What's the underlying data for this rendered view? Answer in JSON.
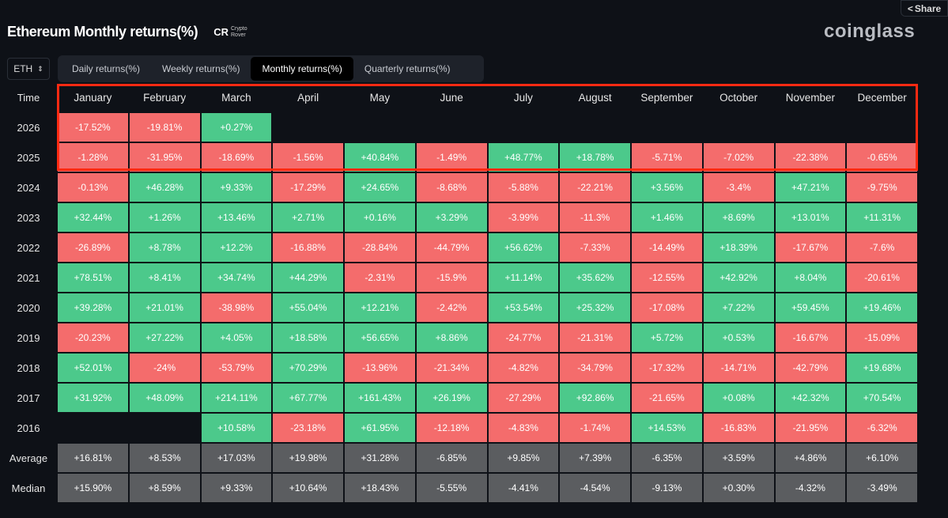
{
  "header": {
    "title": "Ethereum Monthly returns(%)",
    "logo_mark": "CR",
    "logo_text": "Crypto Rover",
    "brand": "coinglass",
    "share_label": "Share"
  },
  "asset_selector": {
    "value": "ETH"
  },
  "tabs": [
    {
      "label": "Daily returns(%)",
      "active": false
    },
    {
      "label": "Weekly returns(%)",
      "active": false
    },
    {
      "label": "Monthly returns(%)",
      "active": true
    },
    {
      "label": "Quarterly returns(%)",
      "active": false
    }
  ],
  "colors": {
    "positive": "#4cc98b",
    "negative": "#f46c6c",
    "summary": "#5b5d60",
    "highlight": "#ff2a12"
  },
  "table": {
    "time_label": "Time",
    "months": [
      "January",
      "February",
      "March",
      "April",
      "May",
      "June",
      "July",
      "August",
      "September",
      "October",
      "November",
      "December"
    ],
    "rows": [
      {
        "year": "2026",
        "values": [
          "-17.52%",
          "-19.81%",
          "+0.27%",
          null,
          null,
          null,
          null,
          null,
          null,
          null,
          null,
          null
        ]
      },
      {
        "year": "2025",
        "values": [
          "-1.28%",
          "-31.95%",
          "-18.69%",
          "-1.56%",
          "+40.84%",
          "-1.49%",
          "+48.77%",
          "+18.78%",
          "-5.71%",
          "-7.02%",
          "-22.38%",
          "-0.65%"
        ]
      },
      {
        "year": "2024",
        "values": [
          "-0.13%",
          "+46.28%",
          "+9.33%",
          "-17.29%",
          "+24.65%",
          "-8.68%",
          "-5.88%",
          "-22.21%",
          "+3.56%",
          "-3.4%",
          "+47.21%",
          "-9.75%"
        ]
      },
      {
        "year": "2023",
        "values": [
          "+32.44%",
          "+1.26%",
          "+13.46%",
          "+2.71%",
          "+0.16%",
          "+3.29%",
          "-3.99%",
          "-11.3%",
          "+1.46%",
          "+8.69%",
          "+13.01%",
          "+11.31%"
        ]
      },
      {
        "year": "2022",
        "values": [
          "-26.89%",
          "+8.78%",
          "+12.2%",
          "-16.88%",
          "-28.84%",
          "-44.79%",
          "+56.62%",
          "-7.33%",
          "-14.49%",
          "+18.39%",
          "-17.67%",
          "-7.6%"
        ]
      },
      {
        "year": "2021",
        "values": [
          "+78.51%",
          "+8.41%",
          "+34.74%",
          "+44.29%",
          "-2.31%",
          "-15.9%",
          "+11.14%",
          "+35.62%",
          "-12.55%",
          "+42.92%",
          "+8.04%",
          "-20.61%"
        ]
      },
      {
        "year": "2020",
        "values": [
          "+39.28%",
          "+21.01%",
          "-38.98%",
          "+55.04%",
          "+12.21%",
          "-2.42%",
          "+53.54%",
          "+25.32%",
          "-17.08%",
          "+7.22%",
          "+59.45%",
          "+19.46%"
        ]
      },
      {
        "year": "2019",
        "values": [
          "-20.23%",
          "+27.22%",
          "+4.05%",
          "+18.58%",
          "+56.65%",
          "+8.86%",
          "-24.77%",
          "-21.31%",
          "+5.72%",
          "+0.53%",
          "-16.67%",
          "-15.09%"
        ]
      },
      {
        "year": "2018",
        "values": [
          "+52.01%",
          "-24%",
          "-53.79%",
          "+70.29%",
          "-13.96%",
          "-21.34%",
          "-4.82%",
          "-34.79%",
          "-17.32%",
          "-14.71%",
          "-42.79%",
          "+19.68%"
        ]
      },
      {
        "year": "2017",
        "values": [
          "+31.92%",
          "+48.09%",
          "+214.11%",
          "+67.77%",
          "+161.43%",
          "+26.19%",
          "-27.29%",
          "+92.86%",
          "-21.65%",
          "+0.08%",
          "+42.32%",
          "+70.54%"
        ]
      },
      {
        "year": "2016",
        "values": [
          null,
          null,
          "+10.58%",
          "-23.18%",
          "+61.95%",
          "-12.18%",
          "-4.83%",
          "-1.74%",
          "+14.53%",
          "-16.83%",
          "-21.95%",
          "-6.32%"
        ]
      }
    ],
    "summary": [
      {
        "label": "Average",
        "values": [
          "+16.81%",
          "+8.53%",
          "+17.03%",
          "+19.98%",
          "+31.28%",
          "-6.85%",
          "+9.85%",
          "+7.39%",
          "-6.35%",
          "+3.59%",
          "+4.86%",
          "+6.10%"
        ]
      },
      {
        "label": "Median",
        "values": [
          "+15.90%",
          "+8.59%",
          "+9.33%",
          "+10.64%",
          "+18.43%",
          "-5.55%",
          "-4.41%",
          "-4.54%",
          "-9.13%",
          "+0.30%",
          "-4.32%",
          "-3.49%"
        ]
      }
    ]
  }
}
